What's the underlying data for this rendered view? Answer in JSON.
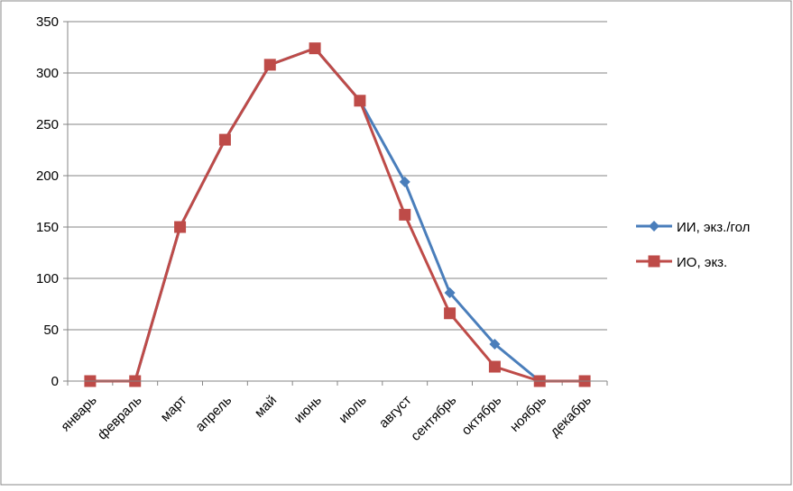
{
  "chart_data": {
    "type": "line",
    "categories": [
      "январь",
      "февраль",
      "март",
      "апрель",
      "май",
      "июнь",
      "июль",
      "август",
      "сентябрь",
      "октябрь",
      "ноябрь",
      "декабрь"
    ],
    "series": [
      {
        "name": "ИИ, экз./гол",
        "color": "#4a7ebb",
        "marker": "diamond",
        "values": [
          0,
          0,
          150,
          235,
          308,
          324,
          273,
          194,
          86,
          36,
          0,
          0
        ]
      },
      {
        "name": "ИО, экз.",
        "color": "#be4b48",
        "marker": "square",
        "values": [
          0,
          0,
          150,
          235,
          308,
          324,
          273,
          162,
          66,
          14,
          0,
          0
        ]
      }
    ],
    "ylim": [
      0,
      350
    ],
    "yticks": [
      0,
      50,
      100,
      150,
      200,
      250,
      300,
      350
    ],
    "grid": true,
    "legend": "right"
  }
}
